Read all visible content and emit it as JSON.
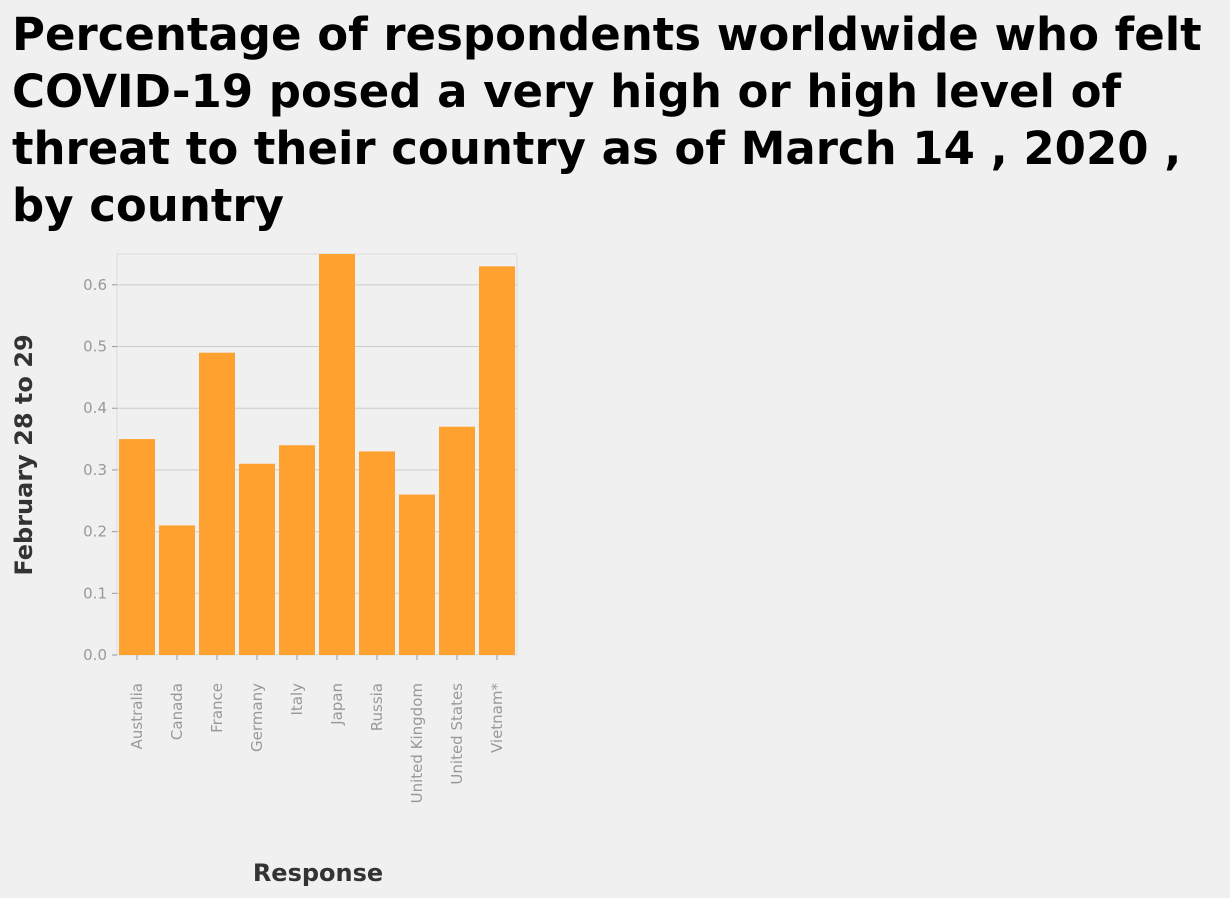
{
  "chart_data": {
    "type": "bar",
    "title": "Percentage of respondents worldwide who felt COVID-19 posed a very high or high level of threat to their country as of March 14 , 2020 , by country",
    "xlabel": "Response",
    "ylabel": "February 28 to 29",
    "categories": [
      "Australia",
      "Canada",
      "France",
      "Germany",
      "Italy",
      "Japan",
      "Russia",
      "United Kingdom",
      "United States",
      "Vietnam*"
    ],
    "values": [
      0.35,
      0.21,
      0.49,
      0.31,
      0.34,
      0.65,
      0.33,
      0.26,
      0.37,
      0.63
    ],
    "yticks": [
      "0.0",
      "0.1",
      "0.2",
      "0.3",
      "0.4",
      "0.5",
      "0.6"
    ],
    "ylim": [
      0,
      0.65
    ],
    "grid": true,
    "legend": "none",
    "bar_color": "#ffa12e"
  }
}
